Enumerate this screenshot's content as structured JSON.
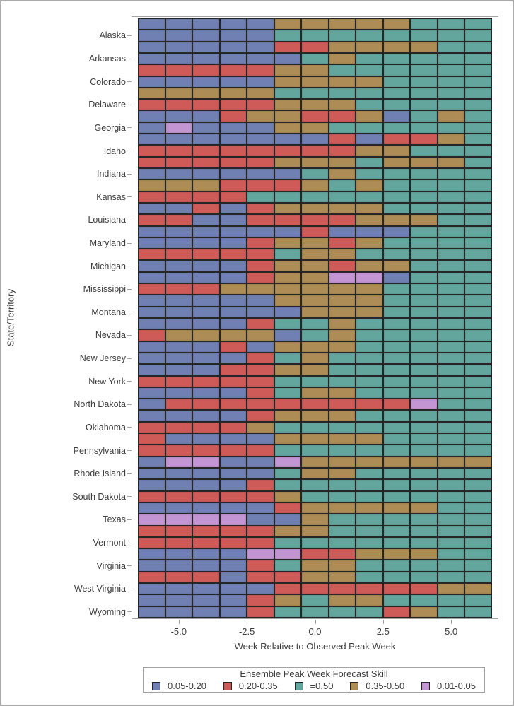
{
  "chart_data": {
    "type": "heatmap",
    "x_axis": {
      "title": "Week Relative to Observed Peak Week",
      "tick_labels": [
        "-5.0",
        "-2.5",
        "0.0",
        "2.5",
        "5.0"
      ],
      "tick_weeks": [
        -5,
        -2.5,
        0,
        2.5,
        5
      ],
      "column_weeks": [
        -6,
        -5,
        -4,
        -3,
        -2,
        -1,
        0,
        1,
        2,
        3,
        4,
        5,
        6
      ],
      "range_weeks": [
        -6.7,
        6.7
      ]
    },
    "y_axis": {
      "title": "State/Territory",
      "labeled_rows": [
        "Alaska",
        "Arkansas",
        "Colorado",
        "Delaware",
        "Georgia",
        "Idaho",
        "Indiana",
        "Kansas",
        "Louisiana",
        "Maryland",
        "Michigan",
        "Mississippi",
        "Montana",
        "Nevada",
        "New Jersey",
        "New York",
        "North Dakota",
        "Oklahoma",
        "Pennsylvania",
        "Rhode Island",
        "South Dakota",
        "Texas",
        "Vermont",
        "Virginia",
        "West Virginia",
        "Wyoming"
      ]
    },
    "legend": {
      "title": "Ensemble Peak Week Forecast Skill",
      "entries": [
        {
          "key": "B",
          "label": "0.05-0.20",
          "color": "#7080b3"
        },
        {
          "key": "R",
          "label": "0.20-0.35",
          "color": "#cf5b59"
        },
        {
          "key": "G",
          "label": "=0.50",
          "color": "#63a69e"
        },
        {
          "key": "T",
          "label": "0.35-0.50",
          "color": "#ad8c55"
        },
        {
          "key": "P",
          "label": "0.01-0.05",
          "color": "#c395d3"
        }
      ]
    },
    "palette": {
      "B": "#7080b3",
      "R": "#cf5b59",
      "G": "#63a69e",
      "T": "#ad8c55",
      "P": "#c395d3"
    },
    "rows": [
      {
        "label": "",
        "cells": "BBBBBTTTTTGGG"
      },
      {
        "label": "Alaska",
        "cells": "BBBBBGGGGGGGG"
      },
      {
        "label": "",
        "cells": "BBBBBRRTTTTGG"
      },
      {
        "label": "Arkansas",
        "cells": "BBBBBBGTGGGGG"
      },
      {
        "label": "",
        "cells": "RRRRRTTGGGGGG"
      },
      {
        "label": "Colorado",
        "cells": "BBBBBTTTTGGGG"
      },
      {
        "label": "",
        "cells": "TTTTTGGGGGGGG"
      },
      {
        "label": "Delaware",
        "cells": "RRRRRTTTGGGGG"
      },
      {
        "label": "",
        "cells": "BBBRTTRRTBGTG"
      },
      {
        "label": "Georgia",
        "cells": "BPBBBTTGGGGGG"
      },
      {
        "label": "",
        "cells": "BBBBBBBRBRRTG"
      },
      {
        "label": "Idaho",
        "cells": "RRRRRRRRTTGGG"
      },
      {
        "label": "",
        "cells": "RRRRRTTTGTTTG"
      },
      {
        "label": "Indiana",
        "cells": "BBBBBBGTGGGGG"
      },
      {
        "label": "",
        "cells": "TTTRRRTGTGGGG"
      },
      {
        "label": "Kansas",
        "cells": "RRRRGGGGGGGGG"
      },
      {
        "label": "",
        "cells": "BBRBRTTTTGGGG"
      },
      {
        "label": "Louisiana",
        "cells": "RRBBRRRRTTTGG"
      },
      {
        "label": "",
        "cells": "BBBBBBRBBBGGG"
      },
      {
        "label": "Maryland",
        "cells": "BBBBRTTRTGGGG"
      },
      {
        "label": "",
        "cells": "RRRRRGTTGGGGG"
      },
      {
        "label": "Michigan",
        "cells": "BBBBRTTRTTGGG"
      },
      {
        "label": "",
        "cells": "BBBBRTTPPBGGG"
      },
      {
        "label": "Mississippi",
        "cells": "RRRTTTTTTGGGG"
      },
      {
        "label": "",
        "cells": "BBBBBTTTTGGGG"
      },
      {
        "label": "Montana",
        "cells": "BBBBBBTTTGGGG"
      },
      {
        "label": "",
        "cells": "BBBBRGGTGGGGG"
      },
      {
        "label": "Nevada",
        "cells": "RTTTTBGTGGGGG"
      },
      {
        "label": "",
        "cells": "BBBRBTTTGGGGG"
      },
      {
        "label": "New Jersey",
        "cells": "BBBBRGTGGGGGG"
      },
      {
        "label": "",
        "cells": "BBBRRTTGGGGGG"
      },
      {
        "label": "New York",
        "cells": "RRRRRGGGGGGGG"
      },
      {
        "label": "",
        "cells": "BBBBRGTTGGGGG"
      },
      {
        "label": "North Dakota",
        "cells": "BRRRRRRRRRPGG"
      },
      {
        "label": "",
        "cells": "BBBBRTTTGGGGG"
      },
      {
        "label": "Oklahoma",
        "cells": "RRRRTGGGGGGGG"
      },
      {
        "label": "",
        "cells": "RBBBBTTTTGGGG"
      },
      {
        "label": "Pennsylvania",
        "cells": "RRRRRGGGGGGGG"
      },
      {
        "label": "",
        "cells": "BPPBBPTTTTTTT"
      },
      {
        "label": "Rhode Island",
        "cells": "BBBBBGTTGGGGG"
      },
      {
        "label": "",
        "cells": "BBBBRGGGGGGGG"
      },
      {
        "label": "South Dakota",
        "cells": "RRRRRTGGGGGGG"
      },
      {
        "label": "",
        "cells": "BBBBBRTTTTTGG"
      },
      {
        "label": "Texas",
        "cells": "PPPPBBTGGGGGG"
      },
      {
        "label": "",
        "cells": "RRRRRTTGGGGGG"
      },
      {
        "label": "Vermont",
        "cells": "RRRRRGGGGGGGG"
      },
      {
        "label": "",
        "cells": "BBBBPPRRTTTGG"
      },
      {
        "label": "Virginia",
        "cells": "BBBBRGTTGGGGG"
      },
      {
        "label": "",
        "cells": "RRRBRRTTGGGGG"
      },
      {
        "label": "West Virginia",
        "cells": "BBBBBRRRRRRTT"
      },
      {
        "label": "",
        "cells": "BBBBRTGTTGGGG"
      },
      {
        "label": "Wyoming",
        "cells": "BBBBRGGGGRTGG"
      }
    ]
  },
  "colors": {
    "grid_line": "#262626",
    "frame": "#a3a3a3",
    "text": "#3c3c3c",
    "page_border": "#ababab"
  }
}
